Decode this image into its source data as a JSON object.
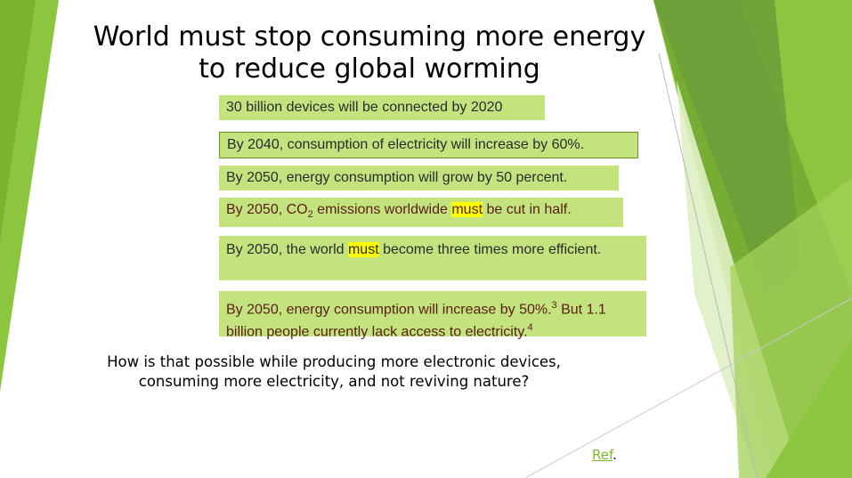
{
  "slide": {
    "title": "World must stop consuming more energy to reduce global worming",
    "facts": {
      "f1": {
        "text": "30 billion devices will be connected by 2020"
      },
      "f2": {
        "text": "By 2040, consumption of electricity will increase by 60%."
      },
      "f3": {
        "text": "By 2050, energy consumption will grow by 50 percent."
      },
      "f4": {
        "before": "By 2050, CO",
        "sub": "2",
        "middle": " emissions worldwide ",
        "highlight": "must",
        "after": " be cut in half."
      },
      "f5": {
        "before": "By 2050, the world ",
        "highlight": "must",
        "after": " become three times more efficient."
      },
      "f6": {
        "part1": "By 2050, energy consumption will increase by 50%.",
        "sup1": "3",
        "part2": " But 1.1 billion people currently lack access to electricity.",
        "sup2": "4"
      }
    },
    "question": "How is that possible while producing more electronic devices, consuming more electricity, and not reviving nature?",
    "ref": {
      "link": "Ref",
      "trail": "."
    },
    "colors": {
      "fact_fill": "#c3e37e",
      "highlight": "#ffff00",
      "accent_green": "#7cb82f",
      "dark_text": "#5a1c14"
    }
  }
}
